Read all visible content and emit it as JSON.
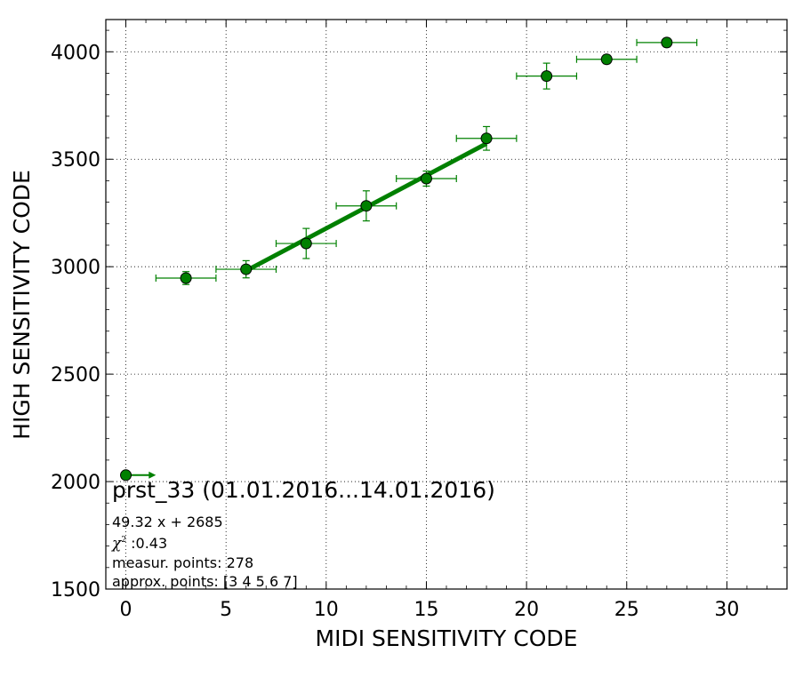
{
  "chart_data": {
    "type": "scatter",
    "xlabel": "MIDI SENSITIVITY CODE",
    "ylabel": "HIGH SENSITIVITY CODE",
    "xlim": [
      -1,
      33
    ],
    "ylim": [
      1500,
      4150
    ],
    "xticks": [
      0,
      5,
      10,
      15,
      20,
      25,
      30
    ],
    "yticks": [
      1500,
      2000,
      2500,
      3000,
      3500,
      4000
    ],
    "grid": true,
    "color": "#008000",
    "points": [
      {
        "x": 3,
        "y": 2947,
        "xerr": 1.5,
        "yerr": 30
      },
      {
        "x": 6,
        "y": 2988,
        "xerr": 1.5,
        "yerr": 40
      },
      {
        "x": 9,
        "y": 3108,
        "xerr": 1.5,
        "yerr": 70
      },
      {
        "x": 12,
        "y": 3283,
        "xerr": 1.5,
        "yerr": 70
      },
      {
        "x": 15,
        "y": 3410,
        "xerr": 1.5,
        "yerr": 35
      },
      {
        "x": 18,
        "y": 3597,
        "xerr": 1.5,
        "yerr": 55
      },
      {
        "x": 21,
        "y": 3887,
        "xerr": 1.5,
        "yerr": 60
      },
      {
        "x": 24,
        "y": 3965,
        "xerr": 1.5,
        "yerr": 20
      },
      {
        "x": 27,
        "y": 4043,
        "xerr": 1.5,
        "yerr": 20
      }
    ],
    "fit_line": {
      "x_start": 6,
      "x_end": 18,
      "slope": 49.32,
      "intercept": 2685
    },
    "marker_point": {
      "x": 0,
      "y": 2030,
      "arrow_to_x": 1.5
    },
    "annotation": {
      "title": "prst_33 (01.01.2016...14.01.2016)",
      "fit_text": "49.32 x + 2685",
      "chi_symbol": "χ",
      "chi_sup": "2",
      "chi_text": " :0.43",
      "measur_text": "measur. points: 278",
      "approx_text": "approx. points: [3 4 5 6 7]"
    }
  }
}
